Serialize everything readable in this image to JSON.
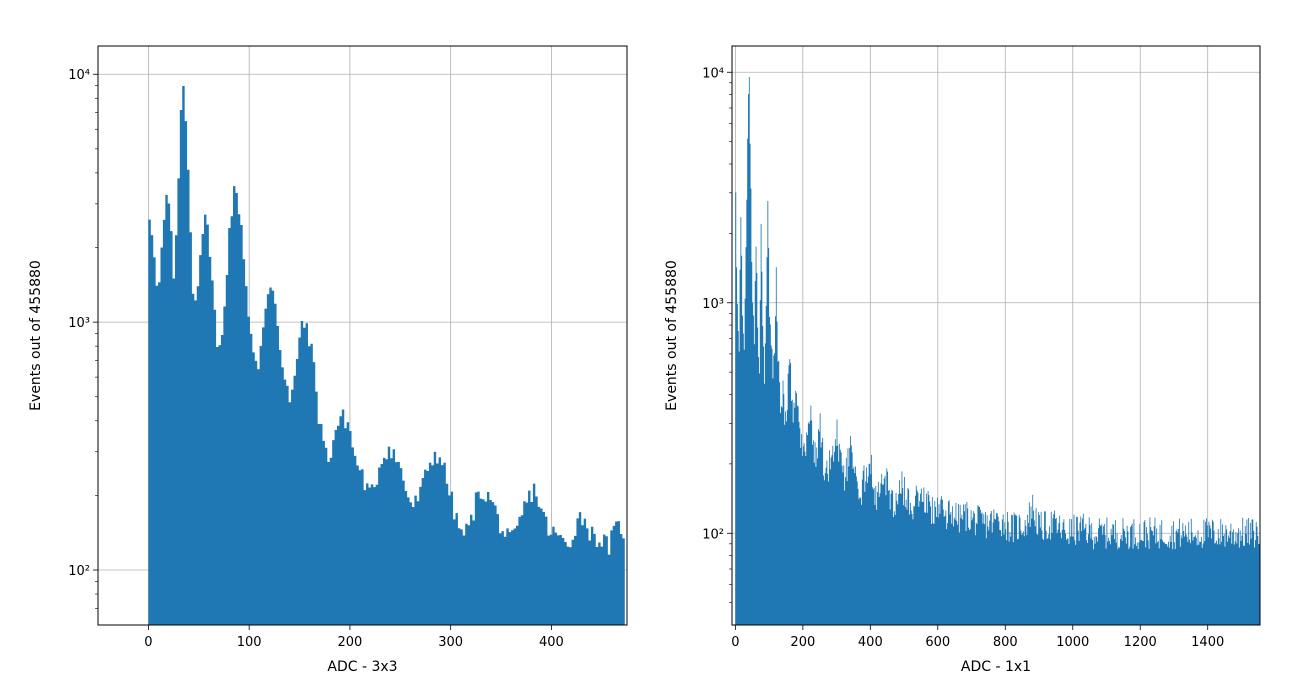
{
  "figure": {
    "bar_color": "#1f77b4",
    "grid_color": "#b0b0b0",
    "axes_color": "#000000"
  },
  "chart_data": [
    {
      "type": "bar",
      "subtype": "histogram",
      "xlabel": "ADC - 3x3",
      "ylabel": "Events out of 455880",
      "yscale": "log",
      "grid": true,
      "xlim": [
        -50,
        475
      ],
      "ylim": [
        60,
        13000
      ],
      "xticks": [
        0,
        100,
        200,
        300,
        400
      ],
      "xtick_labels": [
        "0",
        "100",
        "200",
        "300",
        "400"
      ],
      "yticks": [
        100,
        1000,
        10000
      ],
      "ytick_labels": [
        "10²",
        "10³",
        "10⁴"
      ],
      "bin_width": 2.4,
      "bin_start": 0,
      "key_points": [
        [
          0,
          2700
        ],
        [
          4,
          2200
        ],
        [
          8,
          1200
        ],
        [
          12,
          1900
        ],
        [
          16,
          3100
        ],
        [
          20,
          2900
        ],
        [
          24,
          1500
        ],
        [
          28,
          2700
        ],
        [
          32,
          9800
        ],
        [
          36,
          6500
        ],
        [
          40,
          3000
        ],
        [
          44,
          1100
        ],
        [
          48,
          1500
        ],
        [
          52,
          2300
        ],
        [
          56,
          2600
        ],
        [
          60,
          2000
        ],
        [
          64,
          1200
        ],
        [
          68,
          700
        ],
        [
          72,
          900
        ],
        [
          76,
          1500
        ],
        [
          80,
          2600
        ],
        [
          84,
          3300
        ],
        [
          88,
          3100
        ],
        [
          92,
          2300
        ],
        [
          96,
          1400
        ],
        [
          100,
          950
        ],
        [
          104,
          700
        ],
        [
          108,
          620
        ],
        [
          112,
          900
        ],
        [
          116,
          1250
        ],
        [
          120,
          1450
        ],
        [
          124,
          1300
        ],
        [
          128,
          950
        ],
        [
          132,
          650
        ],
        [
          136,
          550
        ],
        [
          140,
          450
        ],
        [
          144,
          600
        ],
        [
          148,
          850
        ],
        [
          152,
          950
        ],
        [
          156,
          980
        ],
        [
          160,
          800
        ],
        [
          164,
          620
        ],
        [
          168,
          420
        ],
        [
          172,
          350
        ],
        [
          176,
          280
        ],
        [
          180,
          300
        ],
        [
          184,
          360
        ],
        [
          188,
          400
        ],
        [
          192,
          410
        ],
        [
          196,
          400
        ],
        [
          200,
          350
        ],
        [
          204,
          280
        ],
        [
          210,
          250
        ],
        [
          216,
          210
        ],
        [
          220,
          200
        ],
        [
          226,
          240
        ],
        [
          230,
          280
        ],
        [
          234,
          300
        ],
        [
          238,
          310
        ],
        [
          242,
          300
        ],
        [
          246,
          270
        ],
        [
          250,
          250
        ],
        [
          256,
          200
        ],
        [
          262,
          180
        ],
        [
          268,
          200
        ],
        [
          274,
          240
        ],
        [
          278,
          270
        ],
        [
          282,
          290
        ],
        [
          288,
          290
        ],
        [
          292,
          260
        ],
        [
          296,
          220
        ],
        [
          300,
          190
        ],
        [
          306,
          150
        ],
        [
          312,
          140
        ],
        [
          318,
          150
        ],
        [
          324,
          190
        ],
        [
          330,
          210
        ],
        [
          334,
          200
        ],
        [
          340,
          190
        ],
        [
          346,
          160
        ],
        [
          352,
          140
        ],
        [
          358,
          130
        ],
        [
          364,
          140
        ],
        [
          372,
          180
        ],
        [
          378,
          200
        ],
        [
          382,
          215
        ],
        [
          386,
          190
        ],
        [
          392,
          160
        ],
        [
          398,
          140
        ],
        [
          404,
          140
        ],
        [
          410,
          130
        ],
        [
          416,
          125
        ],
        [
          420,
          140
        ],
        [
          426,
          165
        ],
        [
          432,
          160
        ],
        [
          438,
          140
        ],
        [
          444,
          135
        ],
        [
          450,
          130
        ],
        [
          456,
          125
        ],
        [
          462,
          145
        ],
        [
          468,
          150
        ],
        [
          472,
          140
        ]
      ]
    },
    {
      "type": "bar",
      "subtype": "histogram",
      "xlabel": "ADC - 1x1",
      "ylabel": "Events out of 455880",
      "yscale": "log",
      "grid": true,
      "xlim": [
        -10,
        1555
      ],
      "ylim": [
        40,
        13000
      ],
      "xticks": [
        0,
        200,
        400,
        600,
        800,
        1000,
        1200,
        1400
      ],
      "xtick_labels": [
        "0",
        "200",
        "400",
        "600",
        "800",
        "1000",
        "1200",
        "1400"
      ],
      "yticks": [
        100,
        1000,
        10000
      ],
      "ytick_labels": [
        "10²",
        "10³",
        "10⁴"
      ],
      "bin_width": 2.5,
      "bin_start": 0,
      "key_points": [
        [
          0,
          3000
        ],
        [
          5,
          900
        ],
        [
          10,
          600
        ],
        [
          15,
          2500
        ],
        [
          20,
          900
        ],
        [
          25,
          600
        ],
        [
          30,
          1500
        ],
        [
          35,
          5000
        ],
        [
          40,
          10000
        ],
        [
          45,
          3000
        ],
        [
          50,
          1000
        ],
        [
          55,
          600
        ],
        [
          60,
          2000
        ],
        [
          65,
          800
        ],
        [
          70,
          500
        ],
        [
          75,
          2500
        ],
        [
          80,
          800
        ],
        [
          85,
          500
        ],
        [
          90,
          1000
        ],
        [
          95,
          3000
        ],
        [
          100,
          1000
        ],
        [
          105,
          700
        ],
        [
          110,
          500
        ],
        [
          115,
          700
        ],
        [
          120,
          1500
        ],
        [
          125,
          600
        ],
        [
          130,
          400
        ],
        [
          135,
          350
        ],
        [
          140,
          400
        ],
        [
          150,
          300
        ],
        [
          160,
          600
        ],
        [
          170,
          300
        ],
        [
          180,
          450
        ],
        [
          190,
          260
        ],
        [
          200,
          220
        ],
        [
          210,
          250
        ],
        [
          220,
          350
        ],
        [
          230,
          240
        ],
        [
          240,
          220
        ],
        [
          250,
          300
        ],
        [
          260,
          200
        ],
        [
          270,
          180
        ],
        [
          280,
          210
        ],
        [
          290,
          230
        ],
        [
          300,
          270
        ],
        [
          310,
          200
        ],
        [
          320,
          170
        ],
        [
          330,
          190
        ],
        [
          340,
          230
        ],
        [
          350,
          180
        ],
        [
          360,
          160
        ],
        [
          370,
          150
        ],
        [
          380,
          170
        ],
        [
          390,
          190
        ],
        [
          400,
          200
        ],
        [
          410,
          160
        ],
        [
          420,
          140
        ],
        [
          430,
          150
        ],
        [
          440,
          180
        ],
        [
          450,
          160
        ],
        [
          460,
          140
        ],
        [
          470,
          130
        ],
        [
          480,
          150
        ],
        [
          490,
          170
        ],
        [
          500,
          150
        ],
        [
          520,
          130
        ],
        [
          540,
          150
        ],
        [
          560,
          140
        ],
        [
          580,
          125
        ],
        [
          600,
          130
        ],
        [
          620,
          120
        ],
        [
          640,
          125
        ],
        [
          660,
          115
        ],
        [
          680,
          120
        ],
        [
          700,
          115
        ],
        [
          740,
          110
        ],
        [
          780,
          115
        ],
        [
          820,
          105
        ],
        [
          860,
          110
        ],
        [
          880,
          130
        ],
        [
          900,
          105
        ],
        [
          940,
          110
        ],
        [
          980,
          100
        ],
        [
          1020,
          105
        ],
        [
          1060,
          100
        ],
        [
          1100,
          100
        ],
        [
          1140,
          100
        ],
        [
          1180,
          100
        ],
        [
          1220,
          100
        ],
        [
          1260,
          100
        ],
        [
          1300,
          100
        ],
        [
          1340,
          100
        ],
        [
          1380,
          100
        ],
        [
          1420,
          100
        ],
        [
          1460,
          100
        ],
        [
          1500,
          100
        ],
        [
          1540,
          100
        ],
        [
          1555,
          100
        ]
      ]
    }
  ]
}
